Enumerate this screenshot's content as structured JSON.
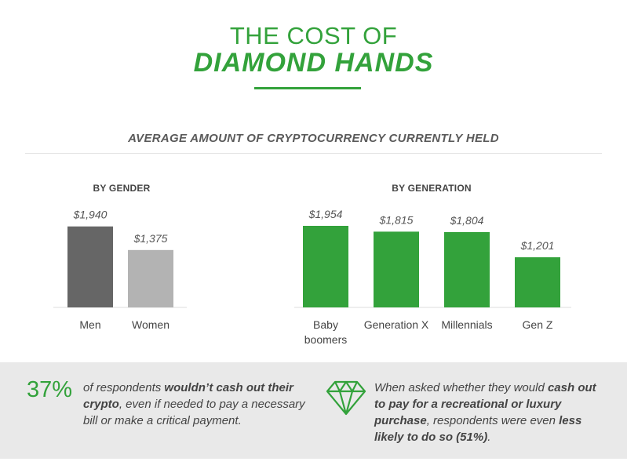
{
  "header": {
    "title_line1": "THE COST OF",
    "title_line2": "DIAMOND HANDS",
    "subtitle": "AVERAGE AMOUNT OF CRYPTOCURRENCY CURRENTLY HELD"
  },
  "colors": {
    "accent_green": "#33a23b",
    "men_gray": "#666666",
    "women_gray": "#b3b3b3",
    "footer_bg": "#e9e9e9"
  },
  "chart_data": [
    {
      "type": "bar",
      "title": "BY GENDER",
      "categories": [
        "Men",
        "Women"
      ],
      "values": [
        1940,
        1375
      ],
      "value_labels": [
        "$1,940",
        "$1,375"
      ],
      "colors": [
        "#666666",
        "#b3b3b3"
      ],
      "grid": false
    },
    {
      "type": "bar",
      "title": "BY GENERATION",
      "categories": [
        "Baby boomers",
        "Generation X",
        "Millennials",
        "Gen Z"
      ],
      "category_lines": [
        [
          "Baby",
          "boomers"
        ],
        [
          "Generation X"
        ],
        [
          "Millennials"
        ],
        [
          "Gen Z"
        ]
      ],
      "values": [
        1954,
        1815,
        1804,
        1201
      ],
      "value_labels": [
        "$1,954",
        "$1,815",
        "$1,804",
        "$1,201"
      ],
      "colors": [
        "#33a23b",
        "#33a23b",
        "#33a23b",
        "#33a23b"
      ],
      "grid": false
    }
  ],
  "footer": {
    "stat_value": "37%",
    "left_text": {
      "part1": "of respondents ",
      "bold1": "wouldn’t cash out their crypto",
      "part2": ", even if needed to pay a necessary bill or make a critical payment."
    },
    "diamond_icon": "diamond-icon",
    "right_text": {
      "part1": "When asked whether they would ",
      "bold1": "cash out to pay for a recreational or luxury purchase",
      "part2": ", respondents were even ",
      "bold2": "less likely to do so (51%)",
      "part3": "."
    }
  }
}
